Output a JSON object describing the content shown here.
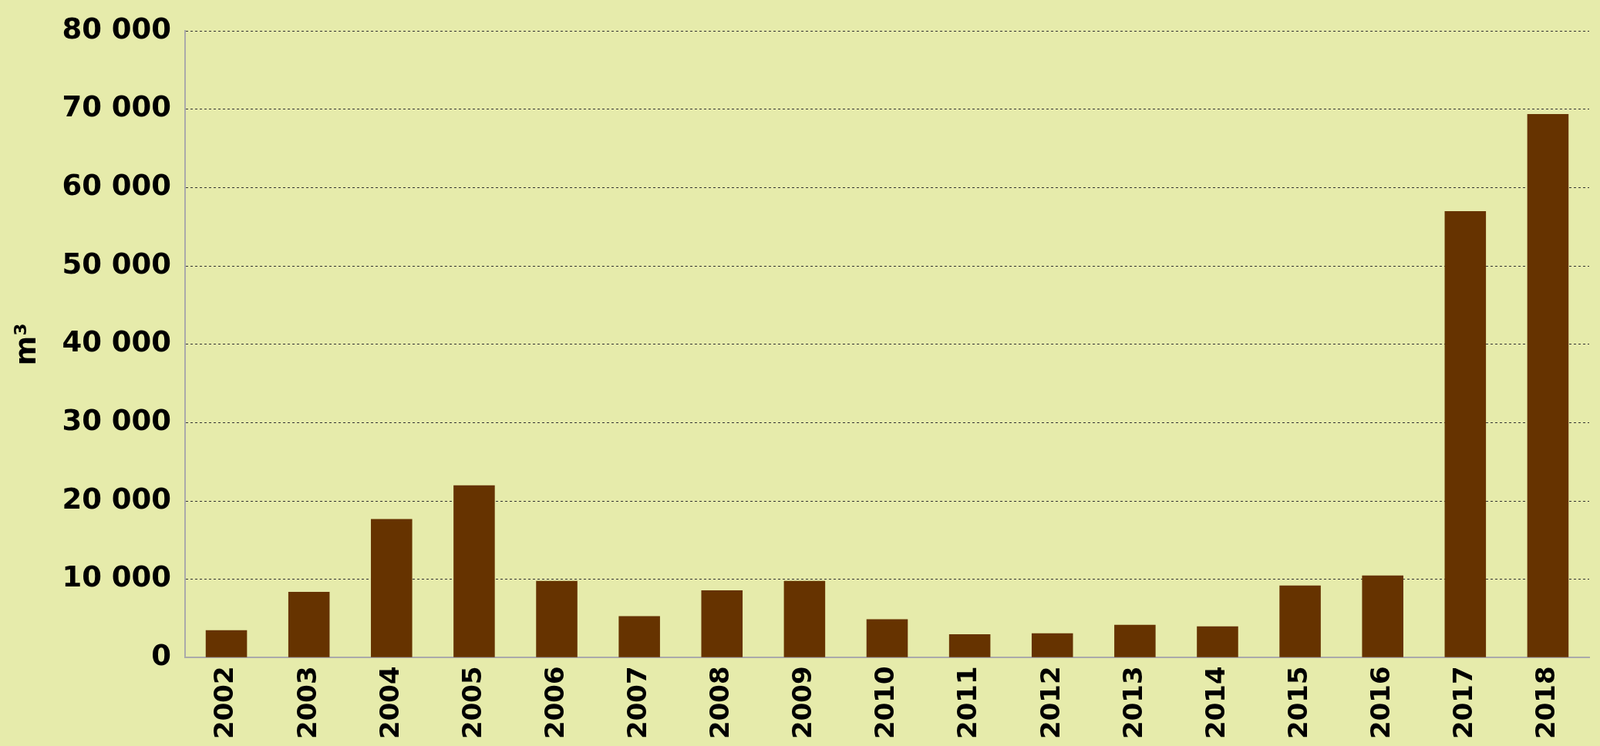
{
  "chart_data": {
    "type": "bar",
    "y_label": "m³",
    "categories": [
      "2002",
      "2003",
      "2004",
      "2005",
      "2006",
      "2007",
      "2008",
      "2009",
      "2010",
      "2011",
      "2012",
      "2013",
      "2014",
      "2015",
      "2016",
      "2017",
      "2018"
    ],
    "values": [
      3500,
      8400,
      17700,
      22000,
      9800,
      5300,
      8600,
      9800,
      4900,
      3000,
      3100,
      4200,
      4000,
      9200,
      10500,
      57000,
      69400
    ],
    "color": "#663300",
    "ylim": [
      0,
      80000
    ],
    "yticks": [
      0,
      {
        "value": 10000,
        "label": "10 000"
      },
      {
        "value": 20000,
        "label": "20 000"
      },
      {
        "value": 30000,
        "label": "30 000"
      },
      {
        "value": 40000,
        "label": "40 000"
      },
      {
        "value": 50000,
        "label": "50 000"
      },
      {
        "value": 60000,
        "label": "60 000"
      },
      {
        "value": 70000,
        "label": "70 000"
      },
      {
        "value": 80000,
        "label": "80 000"
      }
    ],
    "grid": true
  }
}
